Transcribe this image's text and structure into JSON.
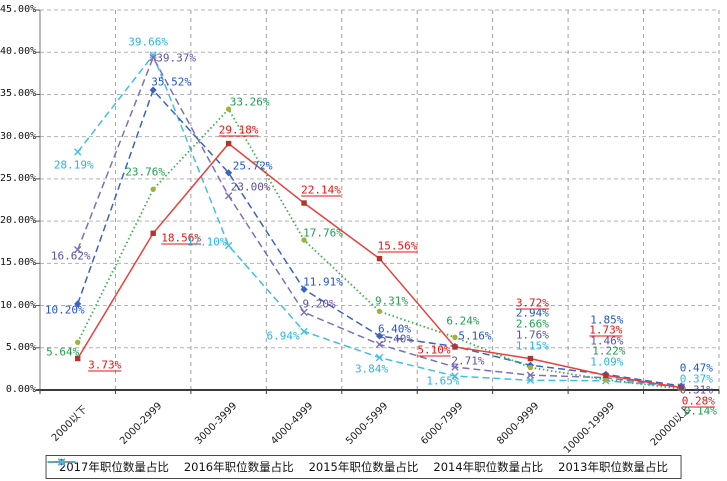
{
  "chart_data": {
    "type": "line",
    "title": "",
    "xlabel": "",
    "ylabel": "",
    "categories": [
      "2000以下",
      "2000-2999",
      "3000-3999",
      "4000-4999",
      "5000-5999",
      "6000-7999",
      "8000-9999",
      "10000-19999",
      "20000以上"
    ],
    "series": [
      {
        "name": "2017年职位数量占比",
        "color": "#e8403a",
        "marker_color": "#b0352f",
        "label_color": "#ee1111",
        "marker": "square",
        "line_style": "solid",
        "underline_labels": true,
        "values": [
          3.73,
          18.56,
          29.18,
          22.14,
          15.56,
          5.1,
          3.72,
          1.73,
          0.28
        ]
      },
      {
        "name": "2016年职位数量占比",
        "color": "#3db04b",
        "marker_color": "#a2b13c",
        "label_color": "#1f9e4e",
        "marker": "circle",
        "line_style": "dotted",
        "underline_labels": false,
        "values": [
          5.64,
          23.76,
          33.26,
          17.76,
          9.31,
          6.24,
          2.66,
          1.22,
          0.14
        ]
      },
      {
        "name": "2015年职位数量占比",
        "color": "#3a63c2",
        "marker_color": "#3a63c2",
        "label_color": "#2256cc",
        "marker": "diamond",
        "line_style": "dashed",
        "underline_labels": false,
        "values": [
          10.2,
          35.52,
          25.72,
          11.91,
          6.4,
          5.16,
          2.94,
          1.85,
          0.47
        ]
      },
      {
        "name": "2014年职位数量占比",
        "color": "#7d6fbb",
        "marker_color": "#7d6fbb",
        "label_color": "#5d509e",
        "marker": "x",
        "line_style": "dashed",
        "underline_labels": false,
        "values": [
          16.62,
          39.37,
          23.0,
          9.2,
          5.4,
          2.71,
          1.76,
          1.46,
          0.31
        ]
      },
      {
        "name": "2013年职位数量占比",
        "color": "#41bee4",
        "marker_color": "#41bee4",
        "label_color": "#2ab5e4",
        "marker": "x",
        "line_style": "dashed",
        "underline_labels": false,
        "values": [
          28.19,
          39.66,
          17.1,
          6.94,
          3.84,
          1.65,
          1.15,
          1.09,
          0.37
        ]
      }
    ],
    "ylim": [
      0,
      45
    ],
    "ytick_step": 5,
    "ytick_labels": [
      "0.00%",
      "5.00%",
      "10.00%",
      "15.00%",
      "20.00%",
      "25.00%",
      "30.00%",
      "35.00%",
      "40.00%",
      "45.00%"
    ],
    "value_label_format": "0.00%",
    "grid": true,
    "legend_position": "bottom"
  }
}
